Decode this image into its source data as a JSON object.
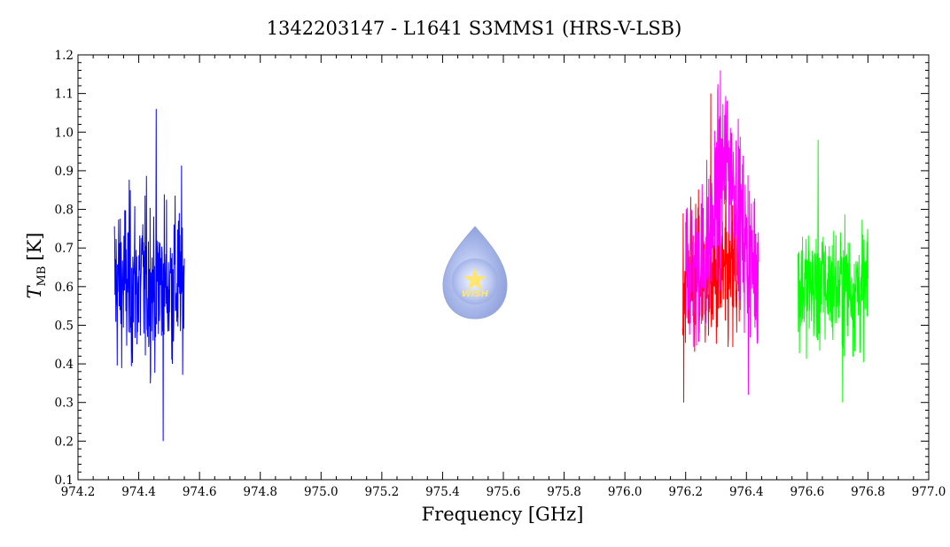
{
  "chart_data": {
    "type": "line",
    "title": "1342203147 - L1641 S3MMS1 (HRS-V-LSB)",
    "xlabel": "Frequency [GHz]",
    "ylabel_main": "T",
    "ylabel_sub": "MB",
    "ylabel_unit": "[K]",
    "xlim": [
      974.2,
      977.0
    ],
    "ylim": [
      0.1,
      1.2
    ],
    "x_ticks": [
      "974.2",
      "974.4",
      "974.6",
      "974.8",
      "975.0",
      "975.2",
      "975.4",
      "975.6",
      "975.8",
      "976.0",
      "976.2",
      "976.4",
      "976.6",
      "976.8",
      "977.0"
    ],
    "y_ticks": [
      "0.1",
      "0.2",
      "0.3",
      "0.4",
      "0.5",
      "0.6",
      "0.7",
      "0.8",
      "0.9",
      "1.0",
      "1.1",
      "1.2"
    ],
    "grid": false,
    "series": [
      {
        "color": "#0000ff",
        "x_range": [
          974.32,
          974.55
        ],
        "baseline": 0.61,
        "noise": 0.11,
        "peak": 1.06,
        "min": 0.2
      },
      {
        "color": "#ff0000",
        "x_range": [
          976.19,
          976.38
        ],
        "baseline": 0.62,
        "noise": 0.1,
        "peak": 1.1,
        "min": 0.3
      },
      {
        "color": "#ff00ff",
        "x_range": [
          976.2,
          976.44
        ],
        "baseline": 0.65,
        "noise": 0.11,
        "peak": 1.16,
        "min": 0.32,
        "line_center": 976.335,
        "line_height": 0.27,
        "line_width": 0.035
      },
      {
        "color": "#00ff00",
        "x_range": [
          976.57,
          976.8
        ],
        "baseline": 0.6,
        "noise": 0.08,
        "peak": 0.98,
        "min": 0.3
      }
    ]
  },
  "logo": {
    "text": "WISH"
  }
}
